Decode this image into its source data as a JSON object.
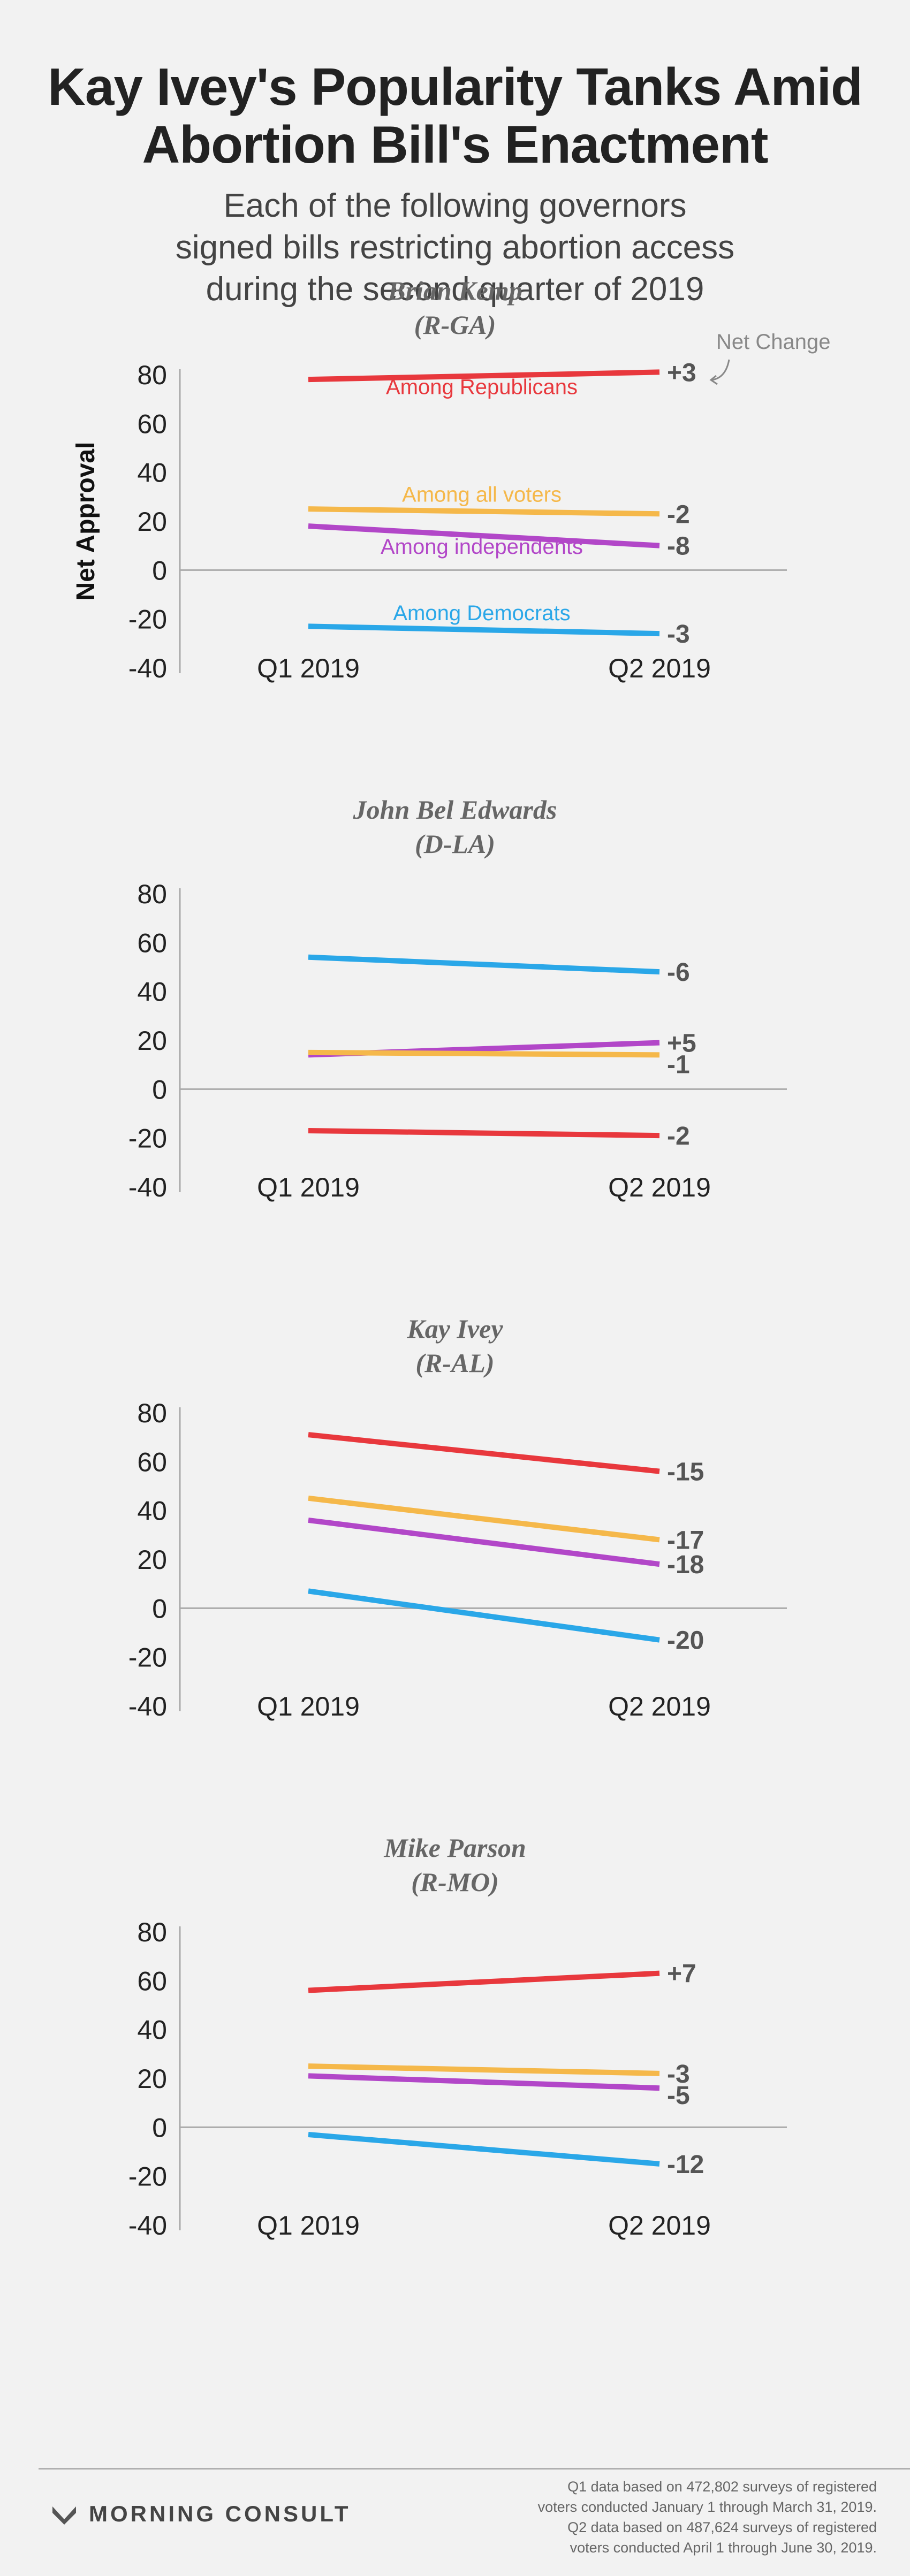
{
  "title_lines": [
    "Kay Ivey's Popularity Tanks Amid",
    "Abortion Bill's Enactment"
  ],
  "subtitle_lines": [
    "Each of the following governors",
    "signed bills restricting abortion access",
    "during the second quarter of 2019"
  ],
  "ylabel": "Net Approval",
  "net_change_label": "Net Change",
  "colors": {
    "republicans": "#e8383d",
    "all_voters": "#f5b84a",
    "independents": "#b247c8",
    "democrats": "#2aa7e8",
    "axis": "#aaaaaa",
    "change_text": "#555555"
  },
  "chart_data": [
    {
      "type": "line",
      "title": "Brian Kemp",
      "subtitle": "(R-GA)",
      "x": [
        "Q1 2019",
        "Q2 2019"
      ],
      "ylim": [
        -40,
        80
      ],
      "yticks": [
        80,
        60,
        40,
        20,
        0,
        -20,
        -40
      ],
      "series": [
        {
          "key": "republicans",
          "name": "Among Republicans",
          "values": [
            78,
            81
          ],
          "change": "+3"
        },
        {
          "key": "all_voters",
          "name": "Among all voters",
          "values": [
            25,
            23
          ],
          "change": "-2"
        },
        {
          "key": "independents",
          "name": "Among independents",
          "values": [
            18,
            10
          ],
          "change": "-8"
        },
        {
          "key": "democrats",
          "name": "Among Democrats",
          "values": [
            -23,
            -26
          ],
          "change": "-3"
        }
      ]
    },
    {
      "type": "line",
      "title": "John Bel Edwards",
      "subtitle": "(D-LA)",
      "x": [
        "Q1 2019",
        "Q2 2019"
      ],
      "ylim": [
        -40,
        80
      ],
      "yticks": [
        80,
        60,
        40,
        20,
        0,
        -20,
        -40
      ],
      "series": [
        {
          "key": "democrats",
          "values": [
            54,
            48
          ],
          "change": "-6"
        },
        {
          "key": "independents",
          "values": [
            14,
            19
          ],
          "change": "+5"
        },
        {
          "key": "all_voters",
          "values": [
            15,
            14
          ],
          "change": "-1"
        },
        {
          "key": "republicans",
          "values": [
            -17,
            -19
          ],
          "change": "-2"
        }
      ]
    },
    {
      "type": "line",
      "title": "Kay Ivey",
      "subtitle": "(R-AL)",
      "x": [
        "Q1 2019",
        "Q2 2019"
      ],
      "ylim": [
        -40,
        80
      ],
      "yticks": [
        80,
        60,
        40,
        20,
        0,
        -20,
        -40
      ],
      "series": [
        {
          "key": "republicans",
          "values": [
            71,
            56
          ],
          "change": "-15"
        },
        {
          "key": "all_voters",
          "values": [
            45,
            28
          ],
          "change": "-17"
        },
        {
          "key": "independents",
          "values": [
            36,
            18
          ],
          "change": "-18"
        },
        {
          "key": "democrats",
          "values": [
            7,
            -13
          ],
          "change": "-20"
        }
      ]
    },
    {
      "type": "line",
      "title": "Mike Parson",
      "subtitle": "(R-MO)",
      "x": [
        "Q1 2019",
        "Q2 2019"
      ],
      "ylim": [
        -40,
        80
      ],
      "yticks": [
        80,
        60,
        40,
        20,
        0,
        -20,
        -40
      ],
      "series": [
        {
          "key": "republicans",
          "values": [
            56,
            63
          ],
          "change": "+7"
        },
        {
          "key": "all_voters",
          "values": [
            25,
            22
          ],
          "change": "-3"
        },
        {
          "key": "independents",
          "values": [
            21,
            16
          ],
          "change": "-5"
        },
        {
          "key": "democrats",
          "values": [
            -3,
            -15
          ],
          "change": "-12"
        }
      ]
    }
  ],
  "brand": "MORNING CONSULT",
  "footnote_lines": [
    "Q1 data based on 472,802 surveys of registered",
    "voters conducted January 1 through March 31, 2019.",
    "Q2 data based on 487,624 surveys of registered",
    "voters conducted April 1 through June 30, 2019."
  ]
}
